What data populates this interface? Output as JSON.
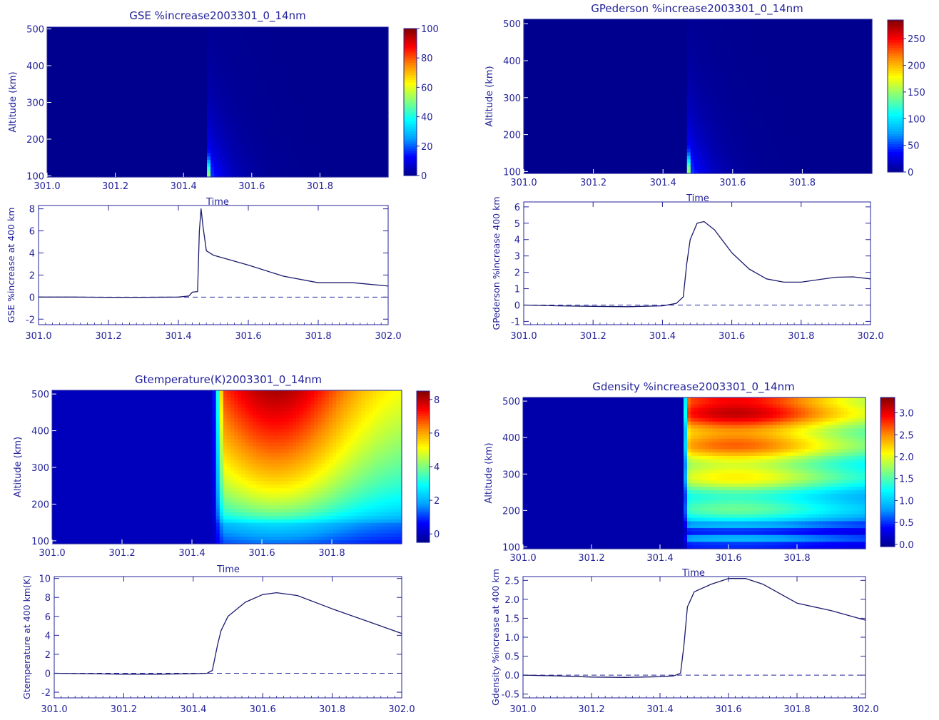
{
  "colors": {
    "axis": "#23239a",
    "line": "#1a1a6e",
    "background_field": "#00008f",
    "colormap": [
      "#00008f",
      "#0000ff",
      "#00a0ff",
      "#00ffff",
      "#7fff7f",
      "#ffff00",
      "#ff8c00",
      "#ff0000",
      "#800000"
    ]
  },
  "panels": [
    {
      "heatmap": {
        "type": "heatmap",
        "title": "GSE %increase2003301_0_14nm",
        "xlabel": "Time",
        "ylabel": "Altitude (km)",
        "xlim": [
          301.0,
          302.0
        ],
        "ylim": [
          97,
          505
        ],
        "xticks": [
          301.0,
          301.2,
          301.4,
          301.6,
          301.8
        ],
        "xtick_labels": [
          "301.0",
          "301.2",
          "301.4",
          "301.6",
          "301.8"
        ],
        "yticks": [
          100,
          200,
          300,
          400,
          500
        ],
        "ytick_labels": [
          "100",
          "200",
          "300",
          "400",
          "500"
        ],
        "colorbar": {
          "range": [
            0,
            100
          ],
          "ticks": [
            0,
            20,
            40,
            60,
            80,
            100
          ],
          "tick_labels": [
            "0",
            "20",
            "40",
            "60",
            "80",
            "100"
          ]
        },
        "pattern": "spike",
        "onset": 301.465
      },
      "line": {
        "type": "line",
        "xlabel": "",
        "ylabel": "GSE %increase at 400 km",
        "xlim": [
          301.0,
          302.0
        ],
        "ylim": [
          -2.5,
          8.3
        ],
        "xticks": [
          301.0,
          301.2,
          301.4,
          301.6,
          301.8,
          302.0
        ],
        "xtick_labels": [
          "301.0",
          "301.2",
          "301.4",
          "301.6",
          "301.8",
          "302.0"
        ],
        "yticks": [
          -2,
          0,
          2,
          4,
          6,
          8
        ],
        "ytick_labels": [
          "-2",
          "0",
          "2",
          "4",
          "6",
          "8"
        ],
        "zero_line": true,
        "x": [
          301.0,
          301.1,
          301.2,
          301.3,
          301.4,
          301.43,
          301.44,
          301.455,
          301.46,
          301.465,
          301.47,
          301.48,
          301.5,
          301.6,
          301.7,
          301.8,
          301.9,
          302.0
        ],
        "y": [
          0,
          0,
          -0.02,
          -0.02,
          0,
          0.1,
          0.45,
          0.5,
          6.0,
          8.0,
          6.5,
          4.2,
          3.8,
          2.9,
          1.9,
          1.3,
          1.3,
          1.0
        ]
      }
    },
    {
      "heatmap": {
        "type": "heatmap",
        "title": "GPederson %increase2003301_0_14nm",
        "xlabel": "Time",
        "ylabel": "Altitude (km)",
        "xlim": [
          301.0,
          302.0
        ],
        "ylim": [
          95,
          512
        ],
        "xticks": [
          301.0,
          301.2,
          301.4,
          301.6,
          301.8
        ],
        "xtick_labels": [
          "301.0",
          "301.2",
          "301.4",
          "301.6",
          "301.8"
        ],
        "yticks": [
          100,
          200,
          300,
          400,
          500
        ],
        "ytick_labels": [
          "100",
          "200",
          "300",
          "400",
          "500"
        ],
        "colorbar": {
          "range": [
            0,
            285
          ],
          "ticks": [
            0,
            50,
            100,
            150,
            200,
            250
          ],
          "tick_labels": [
            "0",
            "50",
            "100",
            "150",
            "200",
            "250"
          ]
        },
        "pattern": "spike",
        "onset": 301.465
      },
      "line": {
        "type": "line",
        "xlabel": "",
        "ylabel": "GPederson %increase 400 km",
        "xlim": [
          301.0,
          302.0
        ],
        "ylim": [
          -1.2,
          6.3
        ],
        "xticks": [
          301.0,
          301.2,
          301.4,
          301.6,
          301.8,
          302.0
        ],
        "xtick_labels": [
          "301.0",
          "301.2",
          "301.4",
          "301.6",
          "301.8",
          "302.0"
        ],
        "yticks": [
          -1,
          0,
          1,
          2,
          3,
          4,
          5,
          6
        ],
        "ytick_labels": [
          "-1",
          "0",
          "1",
          "2",
          "3",
          "4",
          "5",
          "6"
        ],
        "zero_line": true,
        "x": [
          301.0,
          301.1,
          301.2,
          301.3,
          301.4,
          301.44,
          301.46,
          301.47,
          301.48,
          301.5,
          301.52,
          301.55,
          301.6,
          301.65,
          301.7,
          301.75,
          301.8,
          301.85,
          301.9,
          301.95,
          302.0
        ],
        "y": [
          0,
          -0.05,
          -0.08,
          -0.1,
          -0.05,
          0.1,
          0.5,
          2.5,
          4.0,
          5.0,
          5.1,
          4.6,
          3.2,
          2.2,
          1.6,
          1.4,
          1.4,
          1.55,
          1.7,
          1.72,
          1.6
        ]
      }
    },
    {
      "heatmap": {
        "type": "heatmap",
        "title": "Gtemperature(K)2003301_0_14nm",
        "xlabel": "Time",
        "ylabel": "Altitude (km)",
        "xlim": [
          301.0,
          302.0
        ],
        "ylim": [
          92,
          510
        ],
        "xticks": [
          301.0,
          301.2,
          301.4,
          301.6,
          301.8
        ],
        "xtick_labels": [
          "301.0",
          "301.2",
          "301.4",
          "301.6",
          "301.8"
        ],
        "yticks": [
          100,
          200,
          300,
          400,
          500
        ],
        "ytick_labels": [
          "100",
          "200",
          "300",
          "400",
          "500"
        ],
        "colorbar": {
          "range": [
            -0.5,
            8.5
          ],
          "ticks": [
            0,
            2,
            4,
            6,
            8
          ],
          "tick_labels": [
            "0",
            "2",
            "4",
            "6",
            "8"
          ]
        },
        "pattern": "bowl",
        "onset": 301.46
      },
      "line": {
        "type": "line",
        "xlabel": "",
        "ylabel": "Gtemperature at 400 km(K)",
        "xlim": [
          301.0,
          302.0
        ],
        "ylim": [
          -2.6,
          10.2
        ],
        "xticks": [
          301.0,
          301.2,
          301.4,
          301.6,
          301.8,
          302.0
        ],
        "xtick_labels": [
          "301.0",
          "301.2",
          "301.4",
          "301.6",
          "301.8",
          "302.0"
        ],
        "yticks": [
          -2,
          0,
          2,
          4,
          6,
          8,
          10
        ],
        "ytick_labels": [
          "-2",
          "0",
          "2",
          "4",
          "6",
          "8",
          "10"
        ],
        "zero_line": true,
        "x": [
          301.0,
          301.1,
          301.2,
          301.3,
          301.4,
          301.44,
          301.455,
          301.47,
          301.48,
          301.5,
          301.55,
          301.6,
          301.64,
          301.7,
          301.8,
          301.9,
          302.0
        ],
        "y": [
          0,
          -0.05,
          -0.1,
          -0.1,
          -0.05,
          0.0,
          0.3,
          3.0,
          4.5,
          6.0,
          7.5,
          8.3,
          8.5,
          8.2,
          6.8,
          5.5,
          4.2
        ]
      }
    },
    {
      "heatmap": {
        "type": "heatmap",
        "title": "Gdensity %increase2003301_0_14nm",
        "xlabel": "Time",
        "ylabel": "Altitude (km)",
        "xlim": [
          301.0,
          302.0
        ],
        "ylim": [
          95,
          510
        ],
        "xticks": [
          301.0,
          301.2,
          301.4,
          301.6,
          301.8
        ],
        "xtick_labels": [
          "301.0",
          "301.2",
          "301.4",
          "301.6",
          "301.8"
        ],
        "yticks": [
          100,
          200,
          300,
          400,
          500
        ],
        "ytick_labels": [
          "100",
          "200",
          "300",
          "400",
          "500"
        ],
        "colorbar": {
          "range": [
            -0.05,
            3.35
          ],
          "ticks": [
            0.0,
            0.5,
            1.0,
            1.5,
            2.0,
            2.5,
            3.0
          ],
          "tick_labels": [
            "0.0",
            "0.5",
            "1.0",
            "1.5",
            "2.0",
            "2.5",
            "3.0"
          ]
        },
        "pattern": "layers",
        "onset": 301.465
      },
      "line": {
        "type": "line",
        "xlabel": "",
        "ylabel": "Gdensity %increase at 400 km",
        "xlim": [
          301.0,
          302.0
        ],
        "ylim": [
          -0.6,
          2.6
        ],
        "xticks": [
          301.0,
          301.2,
          301.4,
          301.6,
          301.8,
          302.0
        ],
        "xtick_labels": [
          "301.0",
          "301.2",
          "301.4",
          "301.6",
          "301.8",
          "302.0"
        ],
        "yticks": [
          -0.5,
          0.0,
          0.5,
          1.0,
          1.5,
          2.0,
          2.5
        ],
        "ytick_labels": [
          "-0.5",
          "0.0",
          "0.5",
          "1.0",
          "1.5",
          "2.0",
          "2.5"
        ],
        "zero_line": true,
        "x": [
          301.0,
          301.1,
          301.2,
          301.3,
          301.4,
          301.44,
          301.46,
          301.47,
          301.48,
          301.5,
          301.55,
          301.6,
          301.65,
          301.7,
          301.8,
          301.9,
          302.0
        ],
        "y": [
          0,
          -0.02,
          -0.05,
          -0.06,
          -0.04,
          -0.02,
          0.05,
          0.8,
          1.8,
          2.2,
          2.4,
          2.55,
          2.55,
          2.4,
          1.9,
          1.7,
          1.45
        ]
      }
    }
  ]
}
